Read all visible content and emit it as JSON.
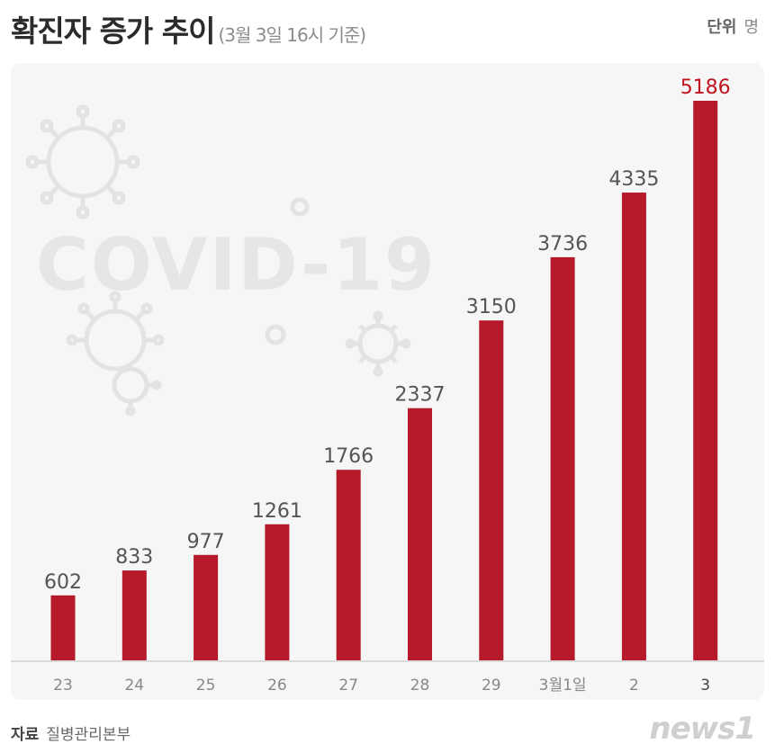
{
  "header": {
    "title": "확진자 증가 추이",
    "subtitle": "(3월 3일 16시 기준)",
    "unit_label": "단위",
    "unit_value": "명"
  },
  "watermark": "COVID-19",
  "footer": {
    "source_label": "자료",
    "source_value": "질병관리본부",
    "logo": "news1"
  },
  "colors": {
    "bar": "#b5192a",
    "highlight_label": "#c0141f",
    "label": "#555555"
  },
  "chart_data": {
    "type": "bar",
    "title": "확진자 증가 추이",
    "categories": [
      "23",
      "24",
      "25",
      "26",
      "27",
      "28",
      "29",
      "3월1일",
      "2",
      "3"
    ],
    "values": [
      602,
      833,
      977,
      1261,
      1766,
      2337,
      3150,
      3736,
      4335,
      5186
    ],
    "highlight_index": 9,
    "ylim": [
      0,
      5186
    ],
    "grid": false,
    "legend": "none"
  }
}
